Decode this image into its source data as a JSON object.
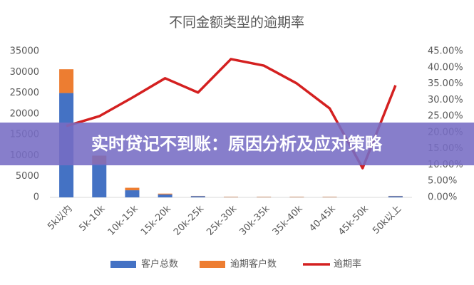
{
  "chart_data": {
    "type": "bar-line",
    "title": "不同金额类型的逾期率",
    "categories": [
      "5k以内",
      "5k-10k",
      "10k-15k",
      "15k-20k",
      "20k-25k",
      "25k-30k",
      "30k-35k",
      "35k-40k",
      "40-45k",
      "45k-50k",
      "50k以上"
    ],
    "series": [
      {
        "name": "客户总数",
        "color": "#4472c4",
        "type": "bar",
        "values": [
          25000,
          8000,
          1700,
          700,
          300,
          50,
          50,
          50,
          50,
          0,
          300
        ]
      },
      {
        "name": "逾期客户数",
        "color": "#ed7d31",
        "type": "bar",
        "values": [
          5700,
          2000,
          600,
          200,
          50,
          100,
          100,
          100,
          100,
          0,
          50
        ]
      },
      {
        "name": "逾期率",
        "color": "#d42020",
        "type": "line",
        "axis": "y2",
        "values": [
          22,
          25,
          30.7,
          36.7,
          32.3,
          42.6,
          40.6,
          35.1,
          27.4,
          9,
          34.5
        ]
      }
    ],
    "ylim": [
      0,
      35000
    ],
    "yticks": [
      0,
      5000,
      10000,
      15000,
      20000,
      25000,
      30000,
      35000
    ],
    "y2lim": [
      0,
      45
    ],
    "y2ticks": [
      {
        "value": 0,
        "label": "0.00%"
      },
      {
        "value": 5,
        "label": "5.00%"
      },
      {
        "value": 10,
        "label": "10.00%"
      },
      {
        "value": 15,
        "label": "15.00%"
      },
      {
        "value": 20,
        "label": "20.00%"
      },
      {
        "value": 25,
        "label": "25.00%"
      },
      {
        "value": 30,
        "label": "30.00%"
      },
      {
        "value": 35,
        "label": "35.00%"
      },
      {
        "value": 40,
        "label": "40.00%"
      },
      {
        "value": 45,
        "label": "45.00%"
      }
    ],
    "grid": false,
    "legend": "bottom"
  },
  "banner": {
    "text": "实时贷记不到账：原因分析及应对策略"
  }
}
